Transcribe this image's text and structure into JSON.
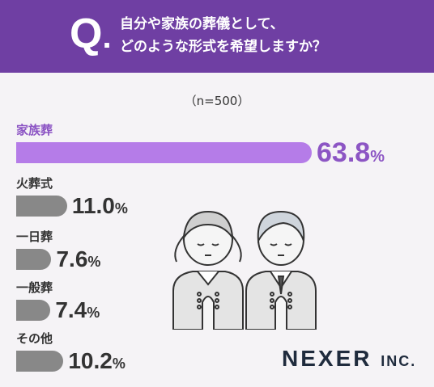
{
  "header": {
    "q_letter": "Q",
    "q_dot": ".",
    "question_line1": "自分や家族の葬儀として、",
    "question_line2": "どのような形式を希望しますか？"
  },
  "sample_note": "（n=500）",
  "brand": {
    "name": "NEXER",
    "suffix": "INC."
  },
  "colors": {
    "header_bg": "#6f3fa3",
    "highlight_bar": "#b57ce8",
    "highlight_text": "#8c55c4",
    "other_bar": "#888888"
  },
  "chart_data": {
    "type": "bar",
    "orientation": "horizontal",
    "categories": [
      "家族葬",
      "火葬式",
      "一日葬",
      "一般葬",
      "その他"
    ],
    "values": [
      63.8,
      11.0,
      7.6,
      7.4,
      10.2
    ],
    "value_labels": [
      "63.8",
      "11.0",
      "7.6",
      "7.4",
      "10.2"
    ],
    "unit": "%",
    "title": "",
    "xlabel": "",
    "ylabel": ""
  }
}
